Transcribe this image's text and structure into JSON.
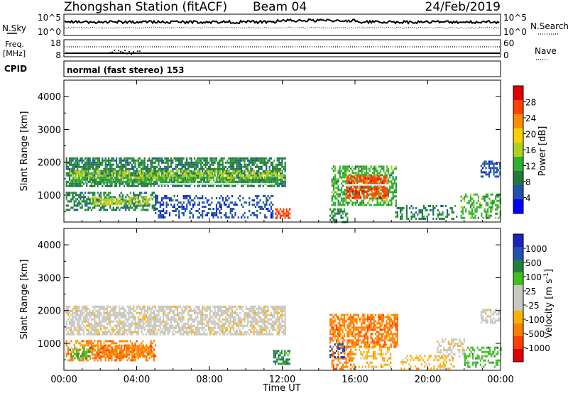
{
  "header": {
    "station": "Zhongshan Station (fitACF)",
    "beam": "Beam 04",
    "date": "24/Feb/2019"
  },
  "top_panels": {
    "nsky": {
      "label": "N.Sky",
      "ticks_left": [
        "10^5",
        "10^0"
      ],
      "ticks_right": [
        "10^5",
        "10^0"
      ],
      "legend_right": "N.Search"
    },
    "freq": {
      "label_line1": "Freq.",
      "label_line2": "[MHz]",
      "ticks_left": [
        "18",
        "8"
      ],
      "ticks_right": [
        "60",
        "0"
      ],
      "legend_right": "Nave"
    },
    "cpid": {
      "label": "CPID",
      "mode_text": "normal (fast stereo) 153"
    }
  },
  "colors": {
    "power": [
      "#0000ff",
      "#2050b0",
      "#1f7a3c",
      "#30b030",
      "#b0d020",
      "#ffd000",
      "#ff8c00",
      "#ff4000",
      "#e00000"
    ],
    "velocity": [
      "#e00000",
      "#ff4000",
      "#ff8000",
      "#ffb000",
      "#c8c8c0",
      "#c8c8c0",
      "#40c020",
      "#208040",
      "#2050b0",
      "#2020c0"
    ],
    "ground": "#a0a0a0"
  },
  "chart_data": [
    {
      "type": "heatmap",
      "name": "power",
      "ylabel": "Slant Range [km]",
      "xlim": [
        "00:00",
        "24:00"
      ],
      "ylim": [
        180,
        4500
      ],
      "yticks": [
        1000,
        2000,
        3000,
        4000
      ],
      "colorbar": {
        "label": "Power [dB]",
        "range": [
          0,
          32
        ],
        "ticks": [
          "4",
          "8",
          "12",
          "16",
          "20",
          "24",
          "28"
        ]
      },
      "regions": [
        {
          "t0": 0.1,
          "t1": 12.2,
          "r0": 1300,
          "r1": 2150,
          "level": 2,
          "density": 0.75
        },
        {
          "t0": 0.3,
          "t1": 12.0,
          "r0": 1500,
          "r1": 1750,
          "level": 4,
          "density": 0.55
        },
        {
          "t0": 0.3,
          "t1": 11.8,
          "r0": 1400,
          "r1": 1550,
          "level": 3,
          "density": 0.5
        },
        {
          "t0": 0.1,
          "t1": 5.0,
          "r0": 550,
          "r1": 1100,
          "level": 2,
          "density": 0.5
        },
        {
          "t0": 1.5,
          "t1": 4.8,
          "r0": 750,
          "r1": 950,
          "level": 4,
          "density": 0.6
        },
        {
          "t0": 5.0,
          "t1": 11.5,
          "r0": 300,
          "r1": 1000,
          "level": 1,
          "density": 0.35
        },
        {
          "t0": 11.6,
          "t1": 12.4,
          "r0": 300,
          "r1": 600,
          "level": 7,
          "density": 0.7
        },
        {
          "t0": 14.7,
          "t1": 18.3,
          "r0": 700,
          "r1": 1900,
          "level": 3,
          "density": 0.6
        },
        {
          "t0": 15.5,
          "t1": 17.8,
          "r0": 900,
          "r1": 1600,
          "level": 7,
          "density": 0.7
        },
        {
          "t0": 14.6,
          "t1": 15.6,
          "r0": 180,
          "r1": 600,
          "level": 2,
          "density": 0.5
        },
        {
          "t0": 18.2,
          "t1": 21.6,
          "r0": 250,
          "r1": 700,
          "level": 2,
          "density": 0.35
        },
        {
          "t0": 21.8,
          "t1": 24.0,
          "r0": 300,
          "r1": 1050,
          "level": 3,
          "density": 0.45
        },
        {
          "t0": 22.9,
          "t1": 24.0,
          "r0": 1550,
          "r1": 2050,
          "level": 1,
          "density": 0.5
        }
      ],
      "lines": [
        {
          "t0": 5.2,
          "t1": 11.6,
          "r": 1340
        },
        {
          "t0": 15.5,
          "t1": 18.0,
          "r": 1310
        }
      ]
    },
    {
      "type": "heatmap",
      "name": "velocity",
      "ylabel": "Slant Range [km]",
      "xlabel": "Time UT",
      "xlim": [
        "00:00",
        "24:00"
      ],
      "ylim": [
        180,
        4500
      ],
      "yticks": [
        1000,
        2000,
        3000,
        4000
      ],
      "xticks": [
        "00:00",
        "04:00",
        "08:00",
        "12:00",
        "16:00",
        "20:00",
        "00:00"
      ],
      "colorbar": {
        "label": "Velocity [m s",
        "label_exponent": "-1",
        "label_close": "]",
        "ticks": [
          "1000",
          "500",
          "100",
          "25",
          "-25",
          "-100",
          "-500",
          "-1000"
        ]
      },
      "regions": [
        {
          "t0": 0.1,
          "t1": 12.2,
          "r0": 1300,
          "r1": 2150,
          "level": 4,
          "density": 0.7
        },
        {
          "t0": 0.1,
          "t1": 5.0,
          "r0": 500,
          "r1": 1100,
          "level": 2,
          "density": 0.45
        },
        {
          "t0": 1.5,
          "t1": 4.8,
          "r0": 600,
          "r1": 950,
          "level": 2,
          "density": 0.7
        },
        {
          "t0": 0.3,
          "t1": 1.5,
          "r0": 550,
          "r1": 900,
          "level": 6,
          "density": 0.4
        },
        {
          "t0": 11.5,
          "t1": 12.4,
          "r0": 350,
          "r1": 800,
          "level": 7,
          "density": 0.7
        },
        {
          "t0": 14.6,
          "t1": 18.3,
          "r0": 900,
          "r1": 1900,
          "level": 2,
          "density": 0.65
        },
        {
          "t0": 14.7,
          "t1": 16.0,
          "r0": 250,
          "r1": 900,
          "level": 2,
          "density": 0.5
        },
        {
          "t0": 14.6,
          "t1": 15.4,
          "r0": 600,
          "r1": 1000,
          "level": 8,
          "density": 0.4
        },
        {
          "t0": 16.2,
          "t1": 18.0,
          "r0": 300,
          "r1": 900,
          "level": 3,
          "density": 0.35
        },
        {
          "t0": 18.5,
          "t1": 21.5,
          "r0": 250,
          "r1": 650,
          "level": 3,
          "density": 0.35
        },
        {
          "t0": 20.5,
          "t1": 22.0,
          "r0": 600,
          "r1": 1150,
          "level": 4,
          "density": 0.45
        },
        {
          "t0": 22.0,
          "t1": 24.0,
          "r0": 300,
          "r1": 900,
          "level": 6,
          "density": 0.4
        },
        {
          "t0": 22.9,
          "t1": 24.0,
          "r0": 1600,
          "r1": 2050,
          "level": 4,
          "density": 0.6
        }
      ],
      "lines": []
    }
  ]
}
